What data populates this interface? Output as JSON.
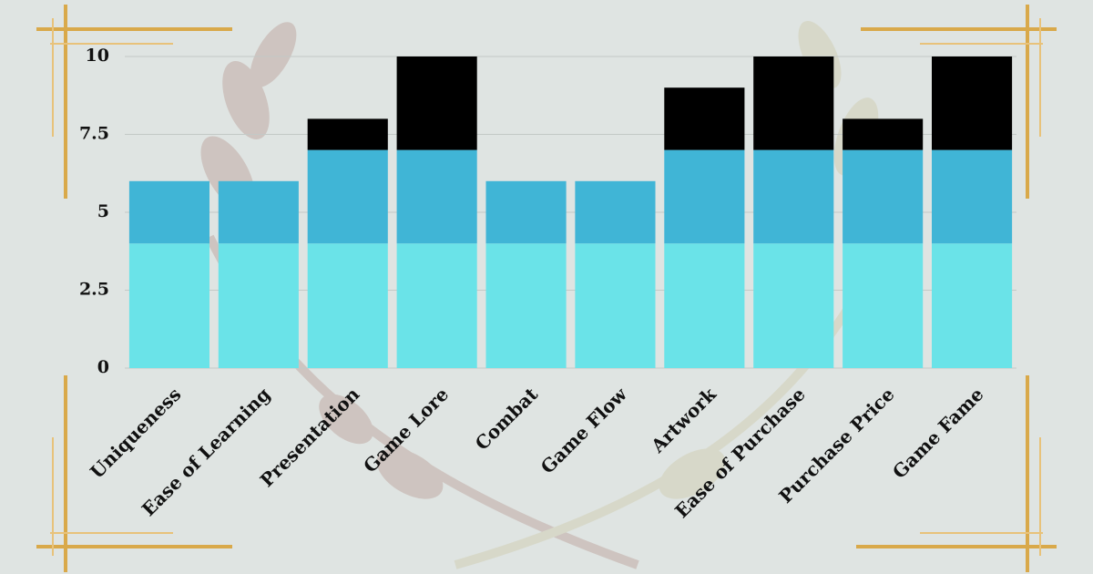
{
  "chart_data": {
    "type": "stacked-bar",
    "categories": [
      "Uniqueness",
      "Ease of Learning",
      "Presentation",
      "Game Lore",
      "Combat",
      "Game Flow",
      "Artwork",
      "Ease of Purchase",
      "Purchase Price",
      "Game Fame"
    ],
    "series": [
      {
        "color": "#6ae3e8",
        "values": [
          4,
          4,
          4,
          4,
          4,
          4,
          4,
          4,
          4,
          4
        ]
      },
      {
        "color": "#40b5d6",
        "values": [
          2,
          2,
          3,
          3,
          2,
          2,
          3,
          3,
          3,
          3
        ]
      },
      {
        "color": "#000000",
        "values": [
          0,
          0,
          1,
          3,
          0,
          0,
          2,
          3,
          1,
          3
        ]
      }
    ],
    "ylim": [
      0,
      10
    ],
    "yticks": [
      0,
      2.5,
      5,
      7.5,
      10
    ],
    "grid": true
  }
}
